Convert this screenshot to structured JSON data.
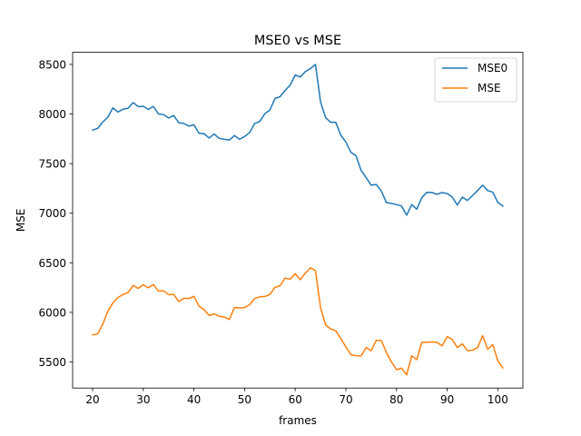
{
  "chart_data": {
    "type": "line",
    "title": "MSE0 vs MSE",
    "xlabel": "frames",
    "ylabel": "MSE",
    "xlim": [
      16.05,
      104.95
    ],
    "ylim": [
      5237,
      8622
    ],
    "xticks": [
      20,
      30,
      40,
      50,
      60,
      70,
      80,
      90,
      100
    ],
    "yticks": [
      5500,
      6000,
      6500,
      7000,
      7500,
      8000,
      8500
    ],
    "grid": false,
    "legend_position": "upper right",
    "x": [
      20,
      21,
      22,
      23,
      24,
      25,
      26,
      27,
      28,
      29,
      30,
      31,
      32,
      33,
      34,
      35,
      36,
      37,
      38,
      39,
      40,
      41,
      42,
      43,
      44,
      45,
      46,
      47,
      48,
      49,
      50,
      51,
      52,
      53,
      54,
      55,
      56,
      57,
      58,
      59,
      60,
      61,
      62,
      63,
      64,
      65,
      66,
      67,
      68,
      69,
      70,
      71,
      72,
      73,
      74,
      75,
      76,
      77,
      78,
      79,
      80,
      81,
      82,
      83,
      84,
      85,
      86,
      87,
      88,
      89,
      90,
      91,
      92,
      93,
      94,
      95,
      96,
      97,
      98,
      99,
      100,
      101
    ],
    "series": [
      {
        "name": "MSE0",
        "color": "#1f77b4",
        "values": [
          7838,
          7855,
          7920,
          7967,
          8062,
          8020,
          8048,
          8058,
          8115,
          8075,
          8078,
          8046,
          8077,
          8000,
          7995,
          7960,
          7985,
          7912,
          7905,
          7878,
          7892,
          7806,
          7802,
          7758,
          7798,
          7755,
          7745,
          7738,
          7783,
          7745,
          7773,
          7813,
          7905,
          7925,
          8003,
          8040,
          8157,
          8175,
          8237,
          8292,
          8393,
          8373,
          8428,
          8458,
          8500,
          8122,
          7962,
          7917,
          7917,
          7785,
          7718,
          7613,
          7580,
          7432,
          7358,
          7282,
          7290,
          7223,
          7107,
          7098,
          7087,
          7072,
          6980,
          7087,
          7040,
          7158,
          7210,
          7208,
          7190,
          7208,
          7198,
          7163,
          7082,
          7162,
          7128,
          7178,
          7228,
          7282,
          7228,
          7212,
          7108,
          7072
        ]
      },
      {
        "name": "MSE",
        "color": "#ff7f0e",
        "values": [
          5773,
          5783,
          5880,
          6012,
          6095,
          6150,
          6180,
          6200,
          6272,
          6242,
          6278,
          6248,
          6280,
          6215,
          6217,
          6178,
          6182,
          6110,
          6142,
          6140,
          6162,
          6062,
          6028,
          5968,
          5985,
          5960,
          5953,
          5928,
          6050,
          6045,
          6048,
          6078,
          6140,
          6157,
          6160,
          6180,
          6252,
          6268,
          6345,
          6335,
          6390,
          6330,
          6395,
          6450,
          6420,
          6048,
          5873,
          5833,
          5815,
          5735,
          5652,
          5572,
          5563,
          5562,
          5645,
          5613,
          5718,
          5715,
          5595,
          5500,
          5422,
          5438,
          5370,
          5563,
          5523,
          5698,
          5698,
          5703,
          5697,
          5662,
          5755,
          5728,
          5645,
          5682,
          5615,
          5618,
          5645,
          5765,
          5628,
          5675,
          5512,
          5440
        ]
      }
    ]
  }
}
